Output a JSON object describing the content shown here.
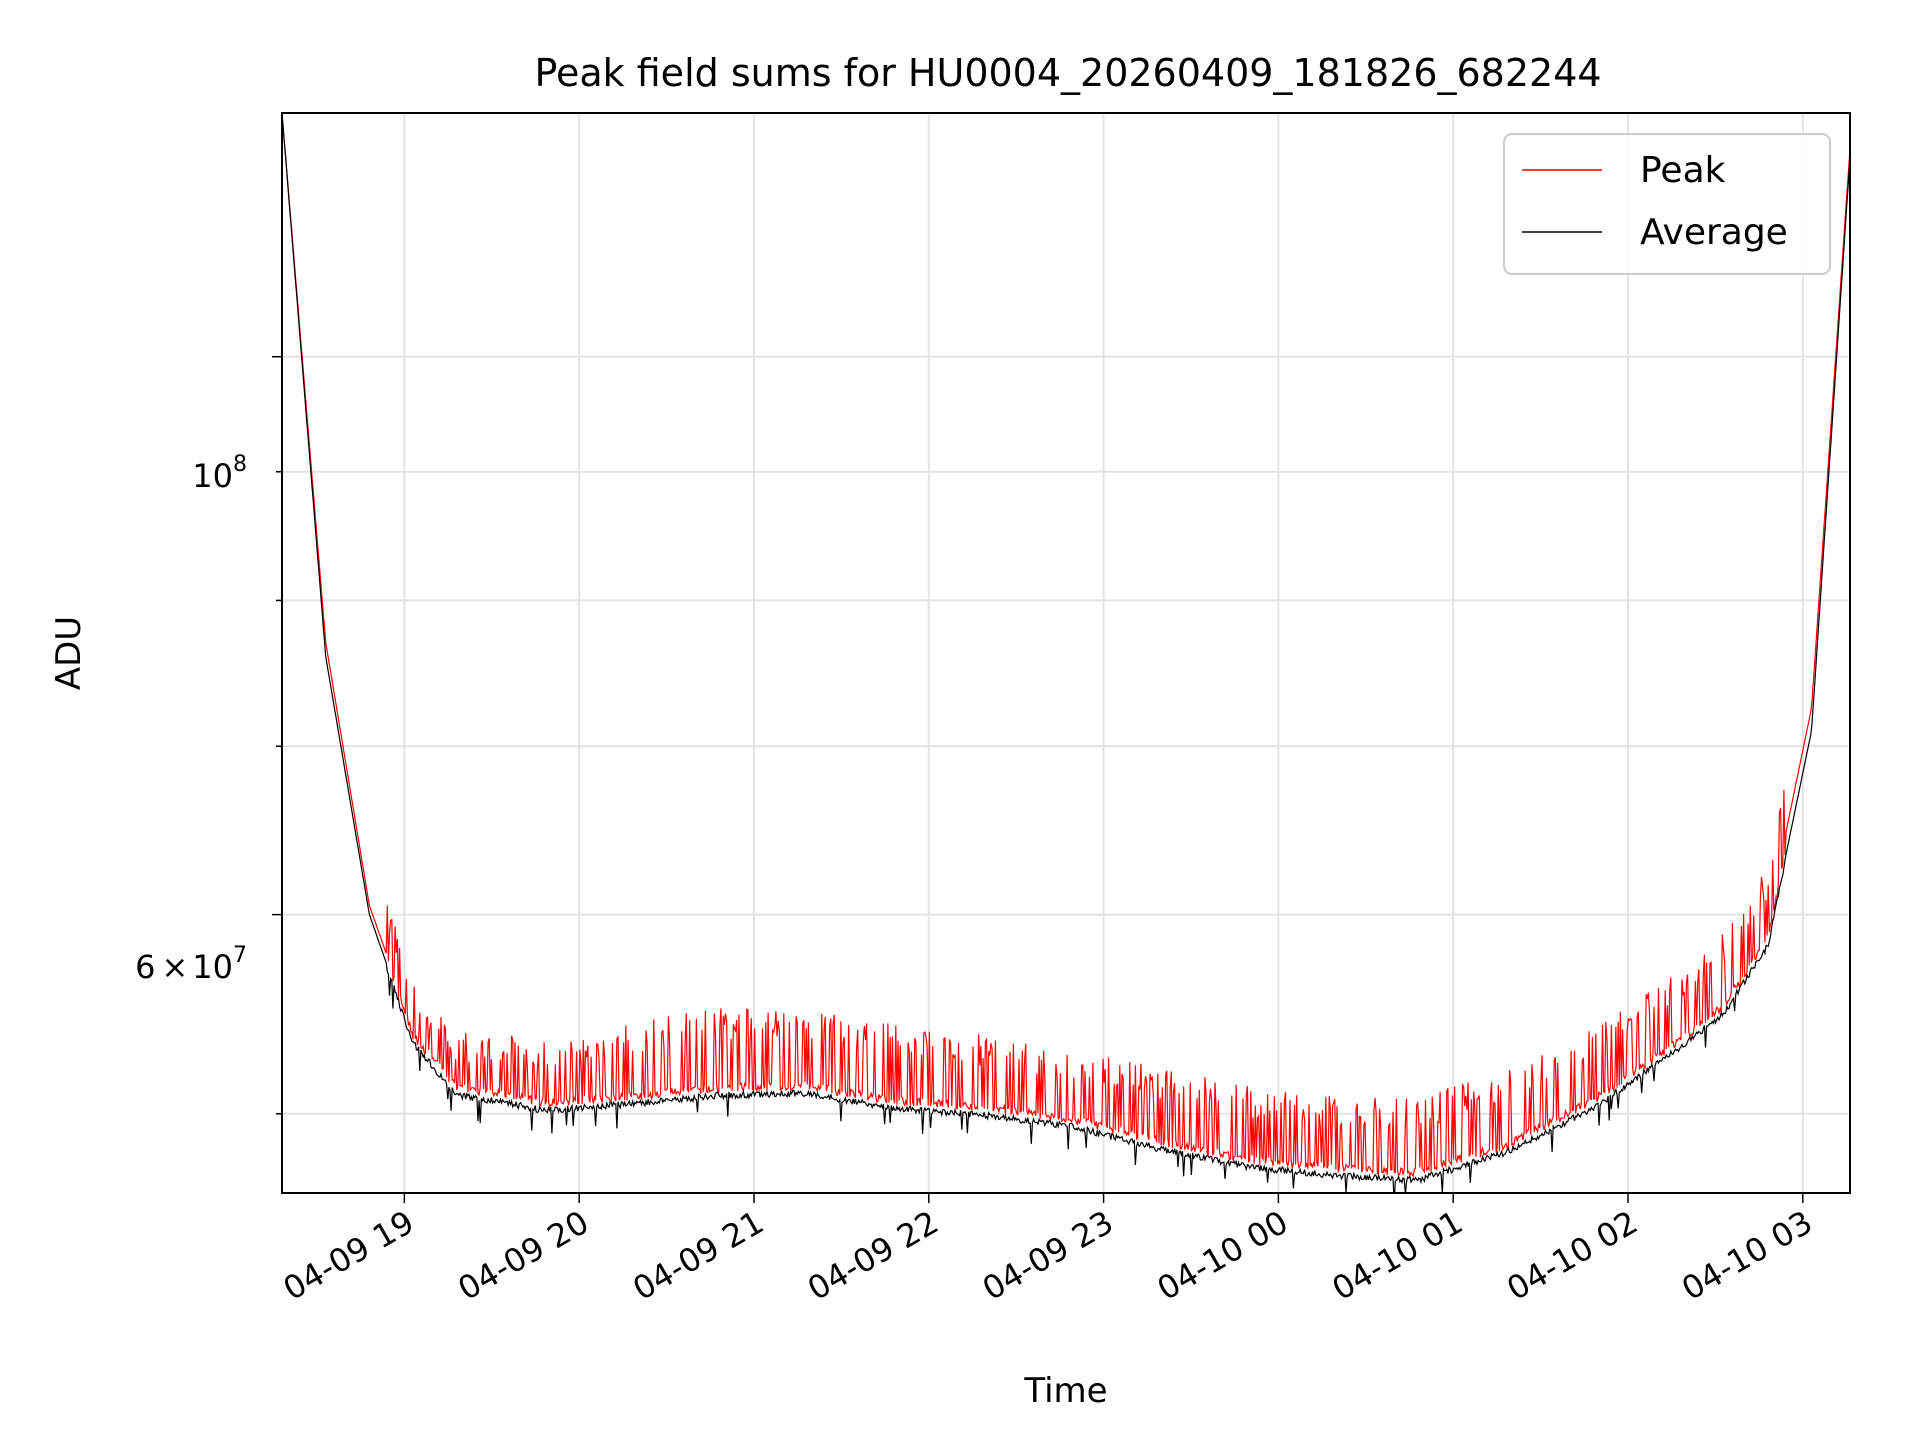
{
  "chart_data": {
    "type": "line",
    "title": "Peak field sums for HU0004_20260409_181826_682244",
    "xlabel": "Time",
    "ylabel": "ADU",
    "yscale": "log",
    "ylim": [
      46500000,
      125000000
    ],
    "xlim": [
      "04-09 18:18",
      "04-10 03:16"
    ],
    "grid": true,
    "legend_position": "upper-right",
    "x_ticks": [
      "04-09 19",
      "04-09 20",
      "04-09 21",
      "04-09 22",
      "04-09 23",
      "04-10 00",
      "04-10 01",
      "04-10 02",
      "04-10 03"
    ],
    "y_tick_labels": [
      {
        "base": "10",
        "exp": "8",
        "value": 100000000
      },
      {
        "mantissa": "6",
        "times": "×",
        "base": "10",
        "exp": "7",
        "value": 60000000
      }
    ],
    "y_minor_ticks": [
      50000000,
      70000000,
      80000000,
      90000000
    ],
    "x_hours": [
      0,
      0.25,
      0.5,
      0.75,
      1.0,
      1.25,
      1.5,
      2.0,
      2.5,
      3.0,
      3.5,
      4.0,
      4.5,
      5.0,
      5.5,
      6.0,
      6.5,
      7.0,
      7.5,
      8.0,
      8.25,
      8.5,
      8.75,
      8.97
    ],
    "series": [
      {
        "name": "Average",
        "color": "#000000",
        "values": [
          125000000,
          76000000,
          60000000,
          53500000,
          51000000,
          50700000,
          50300000,
          50600000,
          51000000,
          51100000,
          50400000,
          50100000,
          49600000,
          48600000,
          47800000,
          47400000,
          47200000,
          48400000,
          50400000,
          53300000,
          55000000,
          58500000,
          71000000,
          120000000
        ]
      },
      {
        "name": "Peak",
        "color": "#ff0000",
        "values": [
          125000000,
          77000000,
          60500000,
          54000000,
          51400000,
          51200000,
          51000000,
          51800000,
          52500000,
          52300000,
          51800000,
          51200000,
          50600000,
          49700000,
          48900000,
          48400000,
          48300000,
          49600000,
          51600000,
          54300000,
          56200000,
          59700000,
          72500000,
          121000000
        ]
      }
    ]
  }
}
